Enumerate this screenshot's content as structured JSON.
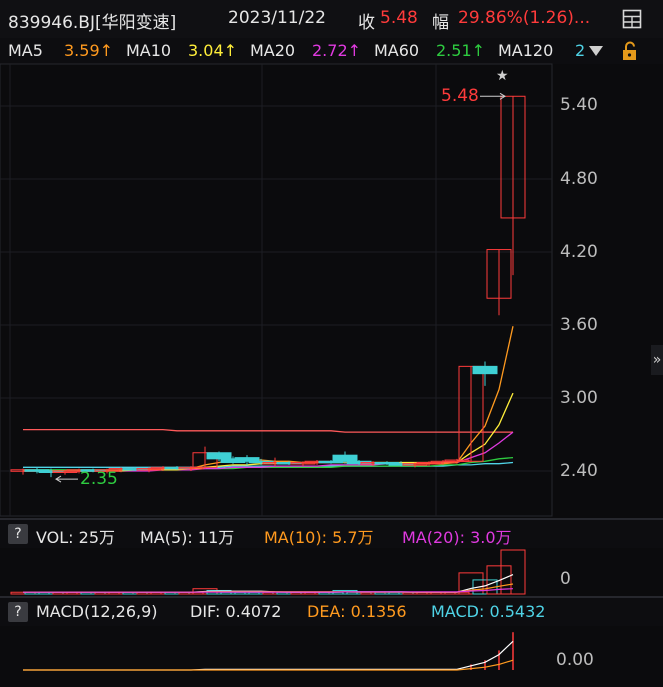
{
  "header": {
    "stock": "839946.BJ[华阳变速]",
    "date": "2023/11/22",
    "close_label": "收",
    "close_value": "5.48",
    "change_label": "幅",
    "change_value": "29.86%(1.26)..."
  },
  "ma_bar": {
    "ma5_label": "MA5",
    "ma5_value": "3.59↑",
    "ma10_label": "MA10",
    "ma10_value": "3.04↑",
    "ma20_label": "MA20",
    "ma20_value": "2.72↑",
    "ma60_label": "MA60",
    "ma60_value": "2.51↑",
    "ma120_label": "MA120",
    "ma120_value": "2"
  },
  "price_axis": [
    "5.40",
    "4.80",
    "4.20",
    "3.60",
    "3.00",
    "2.40"
  ],
  "annotations": {
    "high": "5.48",
    "low": "2.35"
  },
  "vol_bar": {
    "q": "?",
    "vol": "VOL: 25万",
    "ma5": "MA(5): 11万",
    "ma10": "MA(10): 5.7万",
    "ma20": "MA(20): 3.0万",
    "axis": "0"
  },
  "macd_bar": {
    "q": "?",
    "label": "MACD(12,26,9)",
    "dif": "DIF: 0.4072",
    "dea": "DEA: 0.1356",
    "macd": "MACD: 0.5432",
    "axis": "0.00"
  },
  "colors": {
    "up": "#ff3b3b",
    "down": "#3fd0d4",
    "ma5": "#ff9a1f",
    "ma10": "#ffee3a",
    "ma20": "#e03ae0",
    "ma60": "#2ecc40",
    "ma120": "#4fd3e6"
  },
  "chart_data": {
    "type": "candlestick",
    "ylim": [
      2.2,
      5.6
    ],
    "candles": [
      {
        "o": 2.4,
        "h": 2.42,
        "l": 2.37,
        "c": 2.41
      },
      {
        "o": 2.41,
        "h": 2.43,
        "l": 2.38,
        "c": 2.4
      },
      {
        "o": 2.4,
        "h": 2.42,
        "l": 2.35,
        "c": 2.39
      },
      {
        "o": 2.39,
        "h": 2.41,
        "l": 2.37,
        "c": 2.4
      },
      {
        "o": 2.4,
        "h": 2.42,
        "l": 2.38,
        "c": 2.41
      },
      {
        "o": 2.41,
        "h": 2.42,
        "l": 2.39,
        "c": 2.4
      },
      {
        "o": 2.4,
        "h": 2.42,
        "l": 2.38,
        "c": 2.41
      },
      {
        "o": 2.41,
        "h": 2.43,
        "l": 2.39,
        "c": 2.42
      },
      {
        "o": 2.42,
        "h": 2.43,
        "l": 2.4,
        "c": 2.41
      },
      {
        "o": 2.41,
        "h": 2.43,
        "l": 2.39,
        "c": 2.42
      },
      {
        "o": 2.42,
        "h": 2.44,
        "l": 2.4,
        "c": 2.43
      },
      {
        "o": 2.43,
        "h": 2.44,
        "l": 2.41,
        "c": 2.42
      },
      {
        "o": 2.42,
        "h": 2.44,
        "l": 2.4,
        "c": 2.43
      },
      {
        "o": 2.43,
        "h": 2.6,
        "l": 2.42,
        "c": 2.55
      },
      {
        "o": 2.55,
        "h": 2.56,
        "l": 2.48,
        "c": 2.5
      },
      {
        "o": 2.5,
        "h": 2.52,
        "l": 2.46,
        "c": 2.47
      },
      {
        "o": 2.51,
        "h": 2.53,
        "l": 2.45,
        "c": 2.48
      },
      {
        "o": 2.48,
        "h": 2.5,
        "l": 2.45,
        "c": 2.47
      },
      {
        "o": 2.47,
        "h": 2.51,
        "l": 2.44,
        "c": 2.47
      },
      {
        "o": 2.47,
        "h": 2.48,
        "l": 2.45,
        "c": 2.46
      },
      {
        "o": 2.46,
        "h": 2.48,
        "l": 2.44,
        "c": 2.47
      },
      {
        "o": 2.47,
        "h": 2.49,
        "l": 2.45,
        "c": 2.48
      },
      {
        "o": 2.48,
        "h": 2.49,
        "l": 2.46,
        "c": 2.47
      },
      {
        "o": 2.53,
        "h": 2.56,
        "l": 2.46,
        "c": 2.48
      },
      {
        "o": 2.48,
        "h": 2.49,
        "l": 2.45,
        "c": 2.46
      },
      {
        "o": 2.46,
        "h": 2.48,
        "l": 2.44,
        "c": 2.47
      },
      {
        "o": 2.47,
        "h": 2.48,
        "l": 2.45,
        "c": 2.46
      },
      {
        "o": 2.46,
        "h": 2.48,
        "l": 2.44,
        "c": 2.45
      },
      {
        "o": 2.45,
        "h": 2.47,
        "l": 2.43,
        "c": 2.46
      },
      {
        "o": 2.46,
        "h": 2.48,
        "l": 2.44,
        "c": 2.47
      },
      {
        "o": 2.47,
        "h": 2.49,
        "l": 2.45,
        "c": 2.48
      },
      {
        "o": 2.48,
        "h": 2.5,
        "l": 2.46,
        "c": 2.49
      },
      {
        "o": 2.48,
        "h": 3.26,
        "l": 2.47,
        "c": 3.26
      },
      {
        "o": 3.26,
        "h": 3.3,
        "l": 3.1,
        "c": 3.2
      },
      {
        "o": 3.82,
        "h": 4.22,
        "l": 3.68,
        "c": 4.22
      },
      {
        "o": 4.48,
        "h": 5.48,
        "l": 4.01,
        "c": 5.48
      }
    ],
    "volume": [
      1,
      1,
      1,
      1,
      1,
      1,
      1,
      1,
      1,
      1,
      1,
      1,
      1,
      3,
      2,
      1,
      1,
      1,
      1,
      1,
      1,
      1,
      1,
      2,
      1,
      1,
      1,
      1,
      1,
      1,
      1,
      1,
      12,
      8,
      16,
      25
    ],
    "vol_ma5": [
      1,
      1,
      1,
      1,
      1,
      1,
      1,
      1,
      1,
      1,
      1,
      1,
      1,
      1.4,
      1.6,
      1.6,
      1.6,
      1.6,
      1.2,
      1,
      1,
      1,
      1,
      1.2,
      1.2,
      1.2,
      1.2,
      1.2,
      1,
      1,
      1,
      1,
      3.2,
      4.6,
      7.6,
      11
    ],
    "vol_ma10": [
      1,
      1,
      1,
      1,
      1,
      1,
      1,
      1,
      1,
      1,
      1,
      1,
      1,
      1.2,
      1.3,
      1.3,
      1.3,
      1.3,
      1.3,
      1.3,
      1.3,
      1.3,
      1.3,
      1.2,
      1.1,
      1.1,
      1.1,
      1.1,
      1.1,
      1.1,
      1.1,
      1.1,
      2.2,
      2.9,
      4.4,
      5.7
    ],
    "vol_ma20": [
      1,
      1,
      1,
      1,
      1,
      1,
      1,
      1,
      1,
      1,
      1,
      1,
      1,
      1.1,
      1.1,
      1.1,
      1.1,
      1.1,
      1.1,
      1.1,
      1.1,
      1.1,
      1.1,
      1.2,
      1.2,
      1.2,
      1.2,
      1.2,
      1.2,
      1.2,
      1.2,
      1.2,
      1.7,
      2.0,
      2.6,
      3.0
    ],
    "dif": [
      0,
      0,
      0,
      0,
      0,
      0,
      0,
      0,
      0,
      0,
      0,
      0,
      0,
      0.01,
      0.01,
      0.01,
      0.01,
      0.01,
      0.01,
      0.01,
      0.01,
      0.01,
      0.01,
      0.01,
      0.01,
      0.01,
      0.01,
      0.01,
      0.01,
      0.01,
      0.01,
      0.01,
      0.06,
      0.11,
      0.22,
      0.41
    ],
    "dea": [
      0,
      0,
      0,
      0,
      0,
      0,
      0,
      0,
      0,
      0,
      0,
      0,
      0,
      0,
      0,
      0,
      0,
      0,
      0,
      0,
      0,
      0,
      0,
      0,
      0,
      0,
      0,
      0,
      0,
      0,
      0,
      0,
      0.02,
      0.04,
      0.08,
      0.14
    ],
    "macd_hist": [
      0,
      0,
      0,
      0,
      0,
      0,
      0,
      0,
      0,
      0,
      0,
      0,
      0,
      0,
      0,
      0,
      0,
      0,
      0,
      0,
      0,
      0,
      0,
      0,
      0,
      0,
      0,
      0,
      0,
      0,
      0,
      0,
      0.08,
      0.14,
      0.28,
      0.54
    ],
    "ma5": [
      2.4,
      2.4,
      2.4,
      2.4,
      2.4,
      2.4,
      2.4,
      2.41,
      2.41,
      2.41,
      2.42,
      2.42,
      2.42,
      2.45,
      2.47,
      2.48,
      2.49,
      2.49,
      2.48,
      2.48,
      2.47,
      2.47,
      2.47,
      2.47,
      2.47,
      2.47,
      2.47,
      2.46,
      2.46,
      2.46,
      2.46,
      2.47,
      2.63,
      2.77,
      3.07,
      3.59
    ],
    "ma10": [
      2.4,
      2.4,
      2.4,
      2.4,
      2.4,
      2.4,
      2.4,
      2.4,
      2.41,
      2.41,
      2.41,
      2.41,
      2.42,
      2.43,
      2.44,
      2.45,
      2.45,
      2.46,
      2.46,
      2.46,
      2.47,
      2.47,
      2.47,
      2.47,
      2.47,
      2.47,
      2.47,
      2.47,
      2.47,
      2.47,
      2.47,
      2.47,
      2.55,
      2.62,
      2.78,
      3.04
    ],
    "ma20": [
      2.4,
      2.4,
      2.4,
      2.4,
      2.4,
      2.4,
      2.4,
      2.4,
      2.4,
      2.4,
      2.41,
      2.41,
      2.41,
      2.42,
      2.42,
      2.43,
      2.43,
      2.43,
      2.44,
      2.44,
      2.44,
      2.44,
      2.45,
      2.45,
      2.45,
      2.45,
      2.46,
      2.46,
      2.46,
      2.46,
      2.47,
      2.47,
      2.51,
      2.55,
      2.63,
      2.72
    ],
    "ma60": [
      2.41,
      2.41,
      2.41,
      2.41,
      2.41,
      2.41,
      2.41,
      2.41,
      2.41,
      2.41,
      2.41,
      2.42,
      2.42,
      2.42,
      2.42,
      2.42,
      2.43,
      2.43,
      2.43,
      2.43,
      2.43,
      2.43,
      2.43,
      2.44,
      2.44,
      2.44,
      2.44,
      2.44,
      2.44,
      2.44,
      2.45,
      2.45,
      2.47,
      2.48,
      2.5,
      2.51
    ],
    "ma120": [
      2.43,
      2.43,
      2.43,
      2.43,
      2.43,
      2.43,
      2.43,
      2.43,
      2.43,
      2.43,
      2.43,
      2.43,
      2.43,
      2.43,
      2.43,
      2.44,
      2.44,
      2.44,
      2.44,
      2.44,
      2.44,
      2.44,
      2.44,
      2.44,
      2.44,
      2.44,
      2.44,
      2.44,
      2.44,
      2.44,
      2.44,
      2.45,
      2.45,
      2.46,
      2.46,
      2.47
    ],
    "ma250": [
      2.74,
      2.74,
      2.74,
      2.74,
      2.74,
      2.74,
      2.74,
      2.74,
      2.74,
      2.74,
      2.74,
      2.73,
      2.73,
      2.73,
      2.73,
      2.73,
      2.73,
      2.73,
      2.73,
      2.73,
      2.73,
      2.73,
      2.73,
      2.72,
      2.72,
      2.72,
      2.72,
      2.72,
      2.72,
      2.72,
      2.72,
      2.72,
      2.72,
      2.72,
      2.72,
      2.72
    ]
  }
}
